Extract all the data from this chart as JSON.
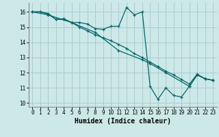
{
  "xlabel": "Humidex (Indice chaleur)",
  "xlim": [
    -0.5,
    23.5
  ],
  "ylim": [
    9.75,
    16.6
  ],
  "yticks": [
    10,
    11,
    12,
    13,
    14,
    15,
    16
  ],
  "xticks": [
    0,
    1,
    2,
    3,
    4,
    5,
    6,
    7,
    8,
    9,
    10,
    11,
    12,
    13,
    14,
    15,
    16,
    17,
    18,
    19,
    20,
    21,
    22,
    23
  ],
  "bg_color": "#cce8e8",
  "grid_color": "#aacccc",
  "line_color": "#006666",
  "lines": [
    {
      "x": [
        0,
        1,
        2,
        3,
        4,
        5,
        6,
        7,
        8,
        9,
        10,
        11,
        12,
        13,
        14,
        15,
        16,
        17,
        18,
        19,
        20,
        21,
        22,
        23
      ],
      "y": [
        16.0,
        16.0,
        15.9,
        15.5,
        15.55,
        15.3,
        15.3,
        15.2,
        14.9,
        14.85,
        15.05,
        15.05,
        16.3,
        15.8,
        16.0,
        11.1,
        10.25,
        11.0,
        10.5,
        10.4,
        11.1,
        11.85,
        11.6,
        11.5
      ]
    },
    {
      "x": [
        0,
        1,
        2,
        3,
        4,
        5,
        6,
        7,
        8,
        9,
        10,
        11,
        12,
        13,
        14,
        15,
        16,
        17,
        18,
        19,
        20,
        21,
        22,
        23
      ],
      "y": [
        16.0,
        16.0,
        15.85,
        15.5,
        15.5,
        15.3,
        15.0,
        14.75,
        14.5,
        14.3,
        14.1,
        13.85,
        13.6,
        13.25,
        13.0,
        12.7,
        12.4,
        12.1,
        11.85,
        11.55,
        11.25,
        11.9,
        11.6,
        11.5
      ]
    },
    {
      "x": [
        0,
        2,
        5,
        8,
        11,
        14,
        15,
        17,
        20,
        21,
        22,
        23
      ],
      "y": [
        16.0,
        15.8,
        15.3,
        14.65,
        13.45,
        12.85,
        12.6,
        12.0,
        11.1,
        11.85,
        11.6,
        11.5
      ]
    }
  ]
}
